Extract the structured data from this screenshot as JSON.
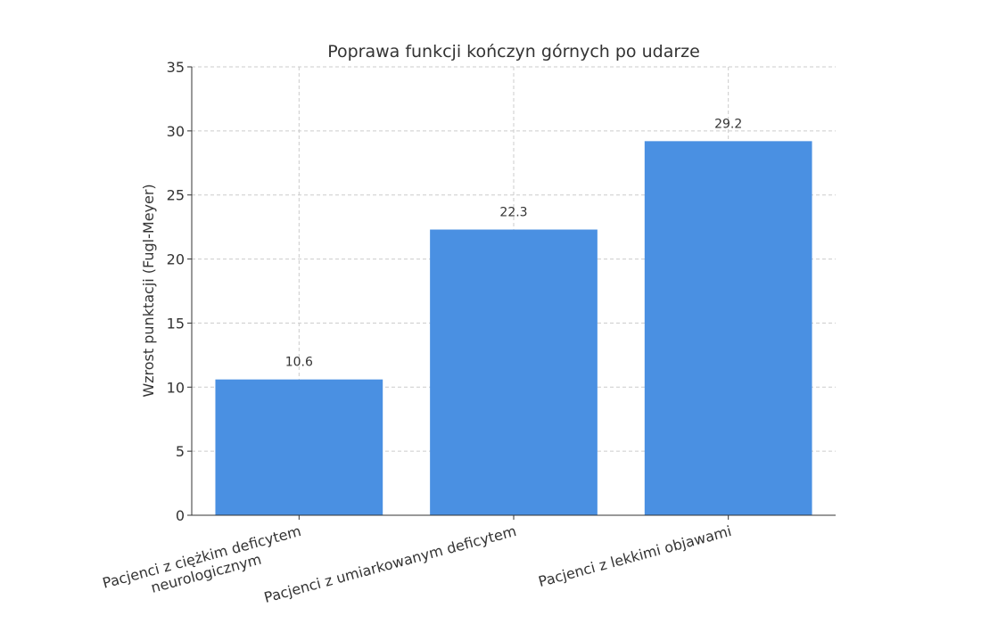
{
  "chart_data": {
    "type": "bar",
    "title": "Poprawa funkcji kończyn górnych po udarze",
    "y_label": "Wzrost punktacji (Fugl-Meyer)",
    "categories": [
      "Pacjenci z ciężkim deficytem\nneurologicznym",
      "Pacjenci z umiarkowanym deficytem",
      "Pacjenci z lekkimi objawami"
    ],
    "values": [
      10.6,
      22.3,
      29.2
    ],
    "color": "#4a90e2",
    "ylim": [
      0,
      35
    ],
    "yticks": [
      0,
      5,
      10,
      15,
      20,
      25,
      30,
      35
    ],
    "grid": true
  }
}
